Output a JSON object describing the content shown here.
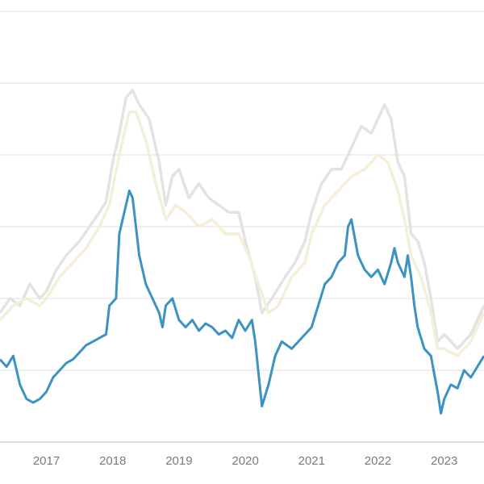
{
  "chart_data": {
    "type": "line",
    "title": "",
    "xlabel": "",
    "ylabel": "",
    "x_tick_labels": [
      "2017",
      "2018",
      "2019",
      "2020",
      "2021",
      "2022",
      "2023"
    ],
    "x_tick_values": [
      2017,
      2018,
      2019,
      2020,
      2021,
      2022,
      2023
    ],
    "xlim": [
      2016.3,
      2023.6
    ],
    "ylim": [
      0,
      6
    ],
    "y_gridlines": [
      1,
      2,
      3,
      4,
      5,
      6
    ],
    "grid": true,
    "legend": "none",
    "series": [
      {
        "color": "#e3e3e3",
        "points": [
          [
            2016.3,
            1.8
          ],
          [
            2016.45,
            2.0
          ],
          [
            2016.6,
            1.9
          ],
          [
            2016.75,
            2.2
          ],
          [
            2016.9,
            2.0
          ],
          [
            2017.0,
            2.1
          ],
          [
            2017.15,
            2.4
          ],
          [
            2017.3,
            2.6
          ],
          [
            2017.5,
            2.8
          ],
          [
            2017.65,
            3.0
          ],
          [
            2017.8,
            3.2
          ],
          [
            2017.9,
            3.35
          ],
          [
            2018.0,
            3.9
          ],
          [
            2018.1,
            4.3
          ],
          [
            2018.2,
            4.8
          ],
          [
            2018.3,
            4.9
          ],
          [
            2018.4,
            4.7
          ],
          [
            2018.55,
            4.5
          ],
          [
            2018.7,
            3.9
          ],
          [
            2018.8,
            3.3
          ],
          [
            2018.9,
            3.7
          ],
          [
            2019.0,
            3.8
          ],
          [
            2019.15,
            3.4
          ],
          [
            2019.3,
            3.6
          ],
          [
            2019.45,
            3.4
          ],
          [
            2019.6,
            3.3
          ],
          [
            2019.75,
            3.2
          ],
          [
            2019.9,
            3.2
          ],
          [
            2020.0,
            2.8
          ],
          [
            2020.15,
            2.3
          ],
          [
            2020.25,
            1.8
          ],
          [
            2020.4,
            2.0
          ],
          [
            2020.6,
            2.3
          ],
          [
            2020.75,
            2.5
          ],
          [
            2020.9,
            2.8
          ],
          [
            2021.0,
            3.2
          ],
          [
            2021.15,
            3.6
          ],
          [
            2021.3,
            3.8
          ],
          [
            2021.45,
            3.8
          ],
          [
            2021.6,
            4.1
          ],
          [
            2021.75,
            4.4
          ],
          [
            2021.9,
            4.3
          ],
          [
            2022.0,
            4.5
          ],
          [
            2022.1,
            4.7
          ],
          [
            2022.2,
            4.5
          ],
          [
            2022.3,
            3.9
          ],
          [
            2022.4,
            3.7
          ],
          [
            2022.5,
            2.9
          ],
          [
            2022.6,
            2.8
          ],
          [
            2022.7,
            2.5
          ],
          [
            2022.8,
            2.0
          ],
          [
            2022.9,
            1.4
          ],
          [
            2023.0,
            1.5
          ],
          [
            2023.2,
            1.3
          ],
          [
            2023.4,
            1.5
          ],
          [
            2023.6,
            1.9
          ]
        ]
      },
      {
        "color": "#f6efd8",
        "points": [
          [
            2016.3,
            1.7
          ],
          [
            2016.5,
            1.9
          ],
          [
            2016.7,
            2.0
          ],
          [
            2016.9,
            1.9
          ],
          [
            2017.0,
            2.0
          ],
          [
            2017.2,
            2.3
          ],
          [
            2017.4,
            2.5
          ],
          [
            2017.6,
            2.7
          ],
          [
            2017.8,
            3.0
          ],
          [
            2017.95,
            3.3
          ],
          [
            2018.1,
            4.0
          ],
          [
            2018.25,
            4.6
          ],
          [
            2018.35,
            4.6
          ],
          [
            2018.5,
            4.2
          ],
          [
            2018.65,
            3.6
          ],
          [
            2018.8,
            3.1
          ],
          [
            2018.95,
            3.3
          ],
          [
            2019.1,
            3.2
          ],
          [
            2019.3,
            3.0
          ],
          [
            2019.5,
            3.1
          ],
          [
            2019.7,
            2.9
          ],
          [
            2019.9,
            2.9
          ],
          [
            2020.05,
            2.6
          ],
          [
            2020.2,
            2.2
          ],
          [
            2020.35,
            1.8
          ],
          [
            2020.5,
            1.9
          ],
          [
            2020.7,
            2.3
          ],
          [
            2020.9,
            2.5
          ],
          [
            2021.0,
            2.9
          ],
          [
            2021.2,
            3.3
          ],
          [
            2021.4,
            3.5
          ],
          [
            2021.6,
            3.7
          ],
          [
            2021.8,
            3.8
          ],
          [
            2022.0,
            4.0
          ],
          [
            2022.15,
            3.9
          ],
          [
            2022.3,
            3.5
          ],
          [
            2022.4,
            3.1
          ],
          [
            2022.5,
            2.6
          ],
          [
            2022.65,
            2.3
          ],
          [
            2022.8,
            1.8
          ],
          [
            2022.9,
            1.3
          ],
          [
            2023.0,
            1.3
          ],
          [
            2023.2,
            1.2
          ],
          [
            2023.4,
            1.4
          ],
          [
            2023.6,
            1.8
          ]
        ]
      },
      {
        "color": "#3b93c2",
        "points": [
          [
            2016.3,
            1.15
          ],
          [
            2016.4,
            1.05
          ],
          [
            2016.5,
            1.2
          ],
          [
            2016.6,
            0.8
          ],
          [
            2016.7,
            0.6
          ],
          [
            2016.8,
            0.55
          ],
          [
            2016.9,
            0.6
          ],
          [
            2017.0,
            0.7
          ],
          [
            2017.1,
            0.9
          ],
          [
            2017.2,
            1.0
          ],
          [
            2017.3,
            1.1
          ],
          [
            2017.4,
            1.15
          ],
          [
            2017.5,
            1.25
          ],
          [
            2017.6,
            1.35
          ],
          [
            2017.7,
            1.4
          ],
          [
            2017.8,
            1.45
          ],
          [
            2017.9,
            1.5
          ],
          [
            2017.95,
            1.9
          ],
          [
            2018.05,
            2.0
          ],
          [
            2018.1,
            2.9
          ],
          [
            2018.2,
            3.3
          ],
          [
            2018.25,
            3.5
          ],
          [
            2018.3,
            3.4
          ],
          [
            2018.35,
            3.0
          ],
          [
            2018.4,
            2.6
          ],
          [
            2018.5,
            2.2
          ],
          [
            2018.6,
            2.0
          ],
          [
            2018.7,
            1.8
          ],
          [
            2018.75,
            1.6
          ],
          [
            2018.8,
            1.9
          ],
          [
            2018.9,
            2.0
          ],
          [
            2019.0,
            1.7
          ],
          [
            2019.1,
            1.6
          ],
          [
            2019.2,
            1.7
          ],
          [
            2019.3,
            1.55
          ],
          [
            2019.4,
            1.65
          ],
          [
            2019.5,
            1.6
          ],
          [
            2019.6,
            1.5
          ],
          [
            2019.7,
            1.55
          ],
          [
            2019.8,
            1.45
          ],
          [
            2019.9,
            1.7
          ],
          [
            2020.0,
            1.55
          ],
          [
            2020.1,
            1.7
          ],
          [
            2020.15,
            1.4
          ],
          [
            2020.25,
            0.5
          ],
          [
            2020.35,
            0.8
          ],
          [
            2020.45,
            1.2
          ],
          [
            2020.55,
            1.4
          ],
          [
            2020.7,
            1.3
          ],
          [
            2020.8,
            1.4
          ],
          [
            2020.9,
            1.5
          ],
          [
            2021.0,
            1.6
          ],
          [
            2021.1,
            1.9
          ],
          [
            2021.2,
            2.2
          ],
          [
            2021.3,
            2.3
          ],
          [
            2021.4,
            2.5
          ],
          [
            2021.5,
            2.6
          ],
          [
            2021.55,
            3.0
          ],
          [
            2021.6,
            3.1
          ],
          [
            2021.7,
            2.6
          ],
          [
            2021.8,
            2.4
          ],
          [
            2021.9,
            2.3
          ],
          [
            2022.0,
            2.4
          ],
          [
            2022.1,
            2.2
          ],
          [
            2022.2,
            2.5
          ],
          [
            2022.25,
            2.7
          ],
          [
            2022.3,
            2.5
          ],
          [
            2022.4,
            2.3
          ],
          [
            2022.45,
            2.6
          ],
          [
            2022.5,
            2.3
          ],
          [
            2022.55,
            1.9
          ],
          [
            2022.6,
            1.6
          ],
          [
            2022.7,
            1.3
          ],
          [
            2022.8,
            1.2
          ],
          [
            2022.9,
            0.7
          ],
          [
            2022.95,
            0.4
          ],
          [
            2023.0,
            0.6
          ],
          [
            2023.1,
            0.8
          ],
          [
            2023.2,
            0.75
          ],
          [
            2023.3,
            1.0
          ],
          [
            2023.4,
            0.9
          ],
          [
            2023.5,
            1.05
          ],
          [
            2023.6,
            1.2
          ]
        ]
      }
    ]
  }
}
